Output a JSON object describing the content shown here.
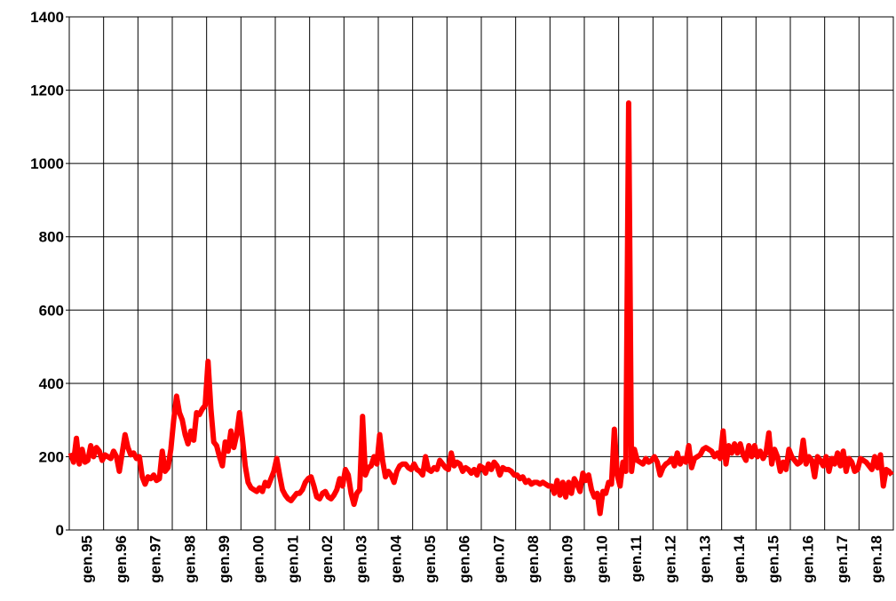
{
  "chart_data": {
    "type": "line",
    "categories": [
      "gen.95",
      null,
      null,
      null,
      null,
      null,
      null,
      null,
      null,
      null,
      null,
      null,
      "gen.96",
      null,
      null,
      null,
      null,
      null,
      null,
      null,
      null,
      null,
      null,
      null,
      "gen.97",
      null,
      null,
      null,
      null,
      null,
      null,
      null,
      null,
      null,
      null,
      null,
      "gen.98",
      null,
      null,
      null,
      null,
      null,
      null,
      null,
      null,
      null,
      null,
      null,
      "gen.99",
      null,
      null,
      null,
      null,
      null,
      null,
      null,
      null,
      null,
      null,
      null,
      "gen.00",
      null,
      null,
      null,
      null,
      null,
      null,
      null,
      null,
      null,
      null,
      null,
      "gen.01",
      null,
      null,
      null,
      null,
      null,
      null,
      null,
      null,
      null,
      null,
      null,
      "gen.02",
      null,
      null,
      null,
      null,
      null,
      null,
      null,
      null,
      null,
      null,
      null,
      "gen.03",
      null,
      null,
      null,
      null,
      null,
      null,
      null,
      null,
      null,
      null,
      null,
      "gen.04",
      null,
      null,
      null,
      null,
      null,
      null,
      null,
      null,
      null,
      null,
      null,
      "gen.05",
      null,
      null,
      null,
      null,
      null,
      null,
      null,
      null,
      null,
      null,
      null,
      "gen.06",
      null,
      null,
      null,
      null,
      null,
      null,
      null,
      null,
      null,
      null,
      null,
      "gen.07",
      null,
      null,
      null,
      null,
      null,
      null,
      null,
      null,
      null,
      null,
      null,
      "gen.08",
      null,
      null,
      null,
      null,
      null,
      null,
      null,
      null,
      null,
      null,
      null,
      "gen.09",
      null,
      null,
      null,
      null,
      null,
      null,
      null,
      null,
      null,
      null,
      null,
      "gen.10",
      null,
      null,
      null,
      null,
      null,
      null,
      null,
      null,
      null,
      null,
      null,
      "gen.11",
      null,
      null,
      null,
      null,
      null,
      null,
      null,
      null,
      null,
      null,
      null,
      "gen.12",
      null,
      null,
      null,
      null,
      null,
      null,
      null,
      null,
      null,
      null,
      null,
      "gen.13",
      null,
      null,
      null,
      null,
      null,
      null,
      null,
      null,
      null,
      null,
      null,
      "gen.14",
      null,
      null,
      null,
      null,
      null,
      null,
      null,
      null,
      null,
      null,
      null,
      "gen.15",
      null,
      null,
      null,
      null,
      null,
      null,
      null,
      null,
      null,
      null,
      null,
      "gen.16",
      null,
      null,
      null,
      null,
      null,
      null,
      null,
      null,
      null,
      null,
      null,
      "gen.17",
      null,
      null,
      null,
      null,
      null,
      null,
      null,
      null,
      null,
      null,
      null,
      "gen.18",
      null,
      null,
      null,
      null,
      null,
      null,
      null,
      null,
      null,
      null,
      null
    ],
    "values": [
      210,
      185,
      250,
      180,
      220,
      185,
      190,
      230,
      200,
      225,
      215,
      190,
      205,
      200,
      195,
      215,
      200,
      160,
      210,
      260,
      225,
      205,
      210,
      195,
      200,
      145,
      125,
      145,
      140,
      150,
      135,
      140,
      215,
      160,
      170,
      220,
      300,
      365,
      320,
      300,
      260,
      235,
      270,
      245,
      320,
      315,
      330,
      340,
      460,
      330,
      240,
      230,
      200,
      175,
      240,
      215,
      270,
      225,
      260,
      320,
      250,
      175,
      130,
      115,
      110,
      105,
      115,
      105,
      130,
      120,
      140,
      160,
      195,
      150,
      110,
      95,
      85,
      80,
      90,
      100,
      100,
      110,
      130,
      140,
      145,
      120,
      90,
      85,
      100,
      105,
      90,
      85,
      95,
      110,
      140,
      120,
      165,
      150,
      100,
      70,
      100,
      110,
      310,
      150,
      170,
      175,
      200,
      180,
      260,
      190,
      145,
      160,
      150,
      130,
      160,
      175,
      180,
      180,
      170,
      165,
      180,
      165,
      160,
      150,
      200,
      165,
      160,
      170,
      165,
      190,
      180,
      170,
      165,
      210,
      175,
      185,
      180,
      160,
      170,
      165,
      155,
      165,
      150,
      175,
      170,
      155,
      180,
      165,
      185,
      175,
      150,
      170,
      165,
      165,
      160,
      150,
      150,
      140,
      145,
      130,
      135,
      125,
      130,
      130,
      125,
      130,
      125,
      120,
      120,
      100,
      135,
      95,
      130,
      90,
      130,
      100,
      140,
      125,
      105,
      155,
      135,
      150,
      110,
      90,
      100,
      45,
      105,
      100,
      130,
      125,
      275,
      150,
      120,
      185,
      160,
      1165,
      160,
      220,
      190,
      185,
      180,
      195,
      185,
      190,
      200,
      185,
      150,
      170,
      180,
      185,
      195,
      175,
      210,
      180,
      195,
      185,
      230,
      170,
      195,
      200,
      205,
      220,
      225,
      220,
      215,
      200,
      210,
      195,
      270,
      180,
      230,
      210,
      235,
      210,
      235,
      205,
      190,
      230,
      200,
      230,
      200,
      215,
      195,
      210,
      265,
      180,
      220,
      200,
      160,
      185,
      165,
      220,
      200,
      190,
      180,
      185,
      245,
      180,
      200,
      190,
      145,
      200,
      190,
      175,
      200,
      160,
      195,
      180,
      210,
      175,
      215,
      160,
      195,
      185,
      160,
      165,
      195,
      190,
      185,
      175,
      165,
      200,
      170,
      205,
      120,
      165,
      160,
      150
    ],
    "color": "#ff0000",
    "ylim": [
      0,
      1400
    ],
    "yticks": [
      0,
      200,
      400,
      600,
      800,
      1000,
      1200,
      1400
    ],
    "grid": true
  }
}
